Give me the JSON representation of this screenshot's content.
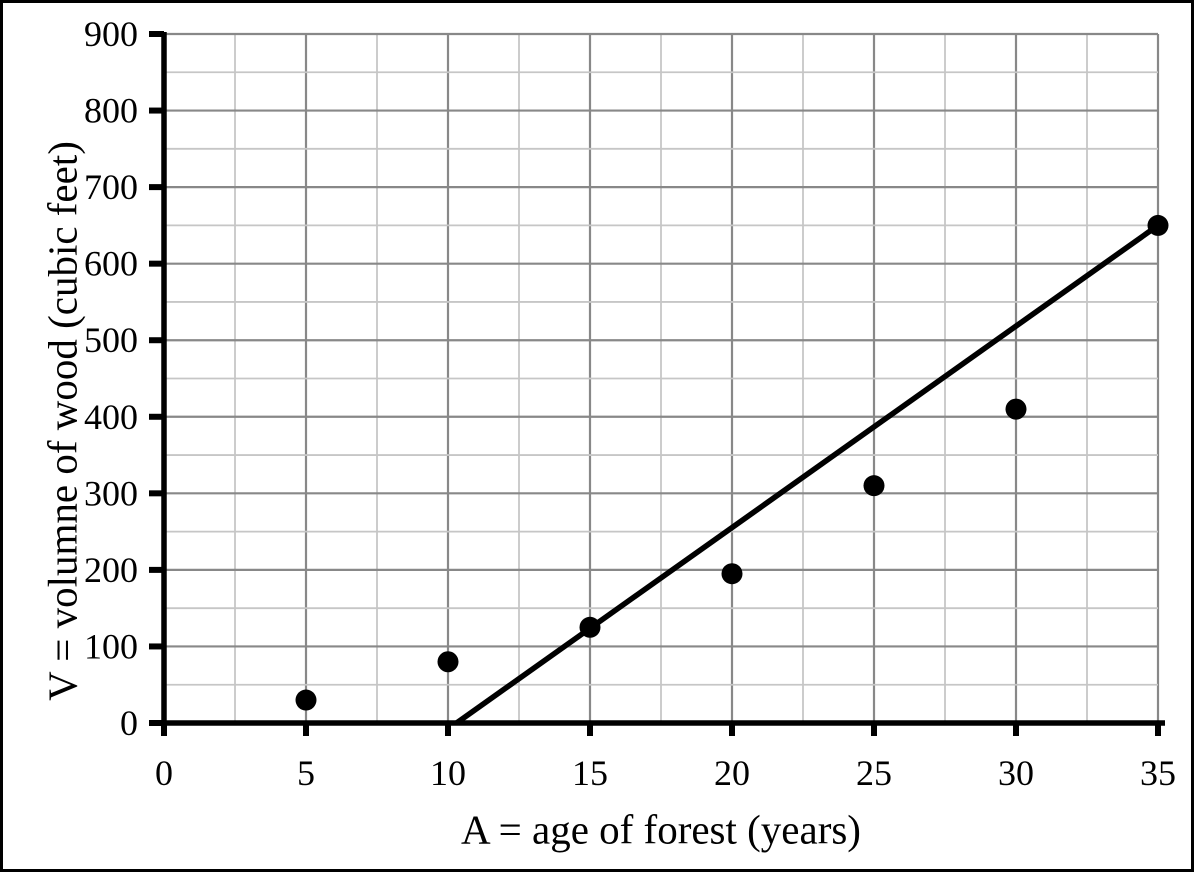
{
  "figure": {
    "background_color": "#ffffff",
    "frame_color": "#000000"
  },
  "chart_data": {
    "type": "scatter",
    "title": "",
    "xlabel": "A = age of forest (years)",
    "ylabel": "V = volumne of wood (cubic feet)",
    "xlim": [
      0,
      35
    ],
    "ylim": [
      0,
      900
    ],
    "xticks": [
      0,
      5,
      10,
      15,
      20,
      25,
      30,
      35
    ],
    "yticks": [
      0,
      100,
      200,
      300,
      400,
      500,
      600,
      700,
      800,
      900
    ],
    "minor_grid_step_x": 2.5,
    "minor_grid_step_y": 50,
    "grid": "major and minor, both axes",
    "legend_position": "none",
    "series": [
      {
        "name": "fitted-trend-line",
        "type": "line",
        "color": "#000000",
        "points": [
          [
            10.3,
            0
          ],
          [
            35,
            650
          ]
        ]
      },
      {
        "name": "observed-volume-points",
        "type": "scatter",
        "marker": "filled-circle",
        "color": "#000000",
        "points": [
          [
            5,
            30
          ],
          [
            10,
            80
          ],
          [
            15,
            125
          ],
          [
            20,
            195
          ],
          [
            25,
            310
          ],
          [
            30,
            410
          ],
          [
            35,
            650
          ]
        ]
      }
    ],
    "colors": {
      "axis": "#000000",
      "major_grid": "#888888",
      "minor_grid": "#c6c6c6",
      "tick_label": "#000000"
    }
  }
}
